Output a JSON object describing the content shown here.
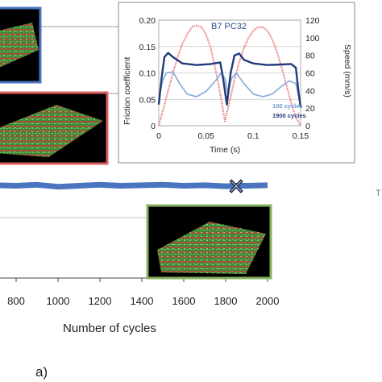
{
  "chart_data": [
    {
      "type": "line",
      "xlabel": "Number of cycles",
      "x_ticks": [
        "800",
        "1000",
        "1200",
        "1400",
        "1600",
        "1800",
        "2000"
      ],
      "xlim": [
        0,
        2000
      ],
      "series": [
        {
          "x": [
            0,
            100,
            200,
            300,
            400,
            500,
            600,
            700,
            800,
            900,
            1000,
            1100,
            1200,
            1300,
            1400,
            1500,
            1600,
            1700,
            1800,
            1850,
            1900,
            2000
          ],
          "y": [
            0.118,
            0.117,
            0.119,
            0.116,
            0.118,
            0.117,
            0.119,
            0.118,
            0.117,
            0.119,
            0.115,
            0.117,
            0.119,
            0.117,
            0.118,
            0.119,
            0.117,
            0.118,
            0.116,
            0.117,
            0.117,
            0.118
          ],
          "color": "#4a74bf"
        }
      ],
      "end_marker": {
        "x": 1850,
        "symbol": "×"
      }
    },
    {
      "type": "line",
      "title": "B7 PC32",
      "xlabel": "Time (s)",
      "ylabel_left": "Friction coefficient",
      "ylabel_right": "Speed (mm/s)",
      "x_ticks": [
        "0",
        "0.05",
        "0.1",
        "0.15"
      ],
      "y_ticks_left": [
        "0",
        "0.05",
        "0.10",
        "0.15",
        "0.20"
      ],
      "y_ticks_right": [
        "0",
        "20",
        "40",
        "60",
        "80",
        "100",
        "120"
      ],
      "xlim": [
        0,
        0.15
      ],
      "ylim_left": [
        0,
        0.2
      ],
      "ylim_right": [
        0,
        120
      ],
      "grid": true,
      "series": [
        {
          "name": "100 cycles",
          "axis": "left",
          "color": "#8eb1dc",
          "x": [
            0,
            0.004,
            0.008,
            0.015,
            0.022,
            0.03,
            0.04,
            0.05,
            0.06,
            0.066,
            0.07,
            0.073,
            0.077,
            0.082,
            0.09,
            0.1,
            0.11,
            0.12,
            0.13,
            0.138,
            0.145,
            0.15
          ],
          "y": [
            0.05,
            0.085,
            0.1,
            0.102,
            0.08,
            0.06,
            0.055,
            0.065,
            0.085,
            0.1,
            0.09,
            0.06,
            0.09,
            0.1,
            0.08,
            0.06,
            0.055,
            0.06,
            0.075,
            0.085,
            0.08,
            0.04
          ]
        },
        {
          "name": "1900 cycles",
          "axis": "left",
          "color": "#233a7a",
          "x": [
            0,
            0.003,
            0.006,
            0.01,
            0.015,
            0.025,
            0.04,
            0.055,
            0.065,
            0.068,
            0.072,
            0.076,
            0.08,
            0.085,
            0.09,
            0.1,
            0.115,
            0.13,
            0.14,
            0.145,
            0.148,
            0.15
          ],
          "y": [
            0.04,
            0.09,
            0.13,
            0.138,
            0.13,
            0.118,
            0.115,
            0.117,
            0.12,
            0.09,
            0.04,
            0.1,
            0.133,
            0.137,
            0.125,
            0.118,
            0.115,
            0.116,
            0.117,
            0.11,
            0.06,
            0.035
          ]
        },
        {
          "name": "Speed",
          "axis": "right",
          "color": "#ec7b7b",
          "x": [
            0,
            0.005,
            0.01,
            0.015,
            0.02,
            0.025,
            0.03,
            0.035,
            0.04,
            0.045,
            0.05,
            0.055,
            0.06,
            0.065,
            0.07,
            0.075,
            0.08,
            0.085,
            0.09,
            0.095,
            0.1,
            0.105,
            0.11,
            0.115,
            0.12,
            0.125,
            0.13,
            0.135,
            0.14,
            0.145,
            0.15
          ],
          "y": [
            0,
            20,
            40,
            60,
            78,
            93,
            104,
            112,
            114,
            112,
            104,
            88,
            64,
            36,
            5,
            28,
            52,
            72,
            88,
            100,
            108,
            112,
            112,
            108,
            98,
            84,
            66,
            46,
            26,
            10,
            0
          ]
        }
      ]
    }
  ],
  "panel_label": "a)",
  "surface_images": [
    {
      "name": "surface-topography-1",
      "border_color": "#4a74bf"
    },
    {
      "name": "surface-topography-2",
      "border_color": "#d95c5c"
    },
    {
      "name": "surface-topography-3",
      "border_color": "#86b45e"
    }
  ],
  "edge_fragment": "T"
}
